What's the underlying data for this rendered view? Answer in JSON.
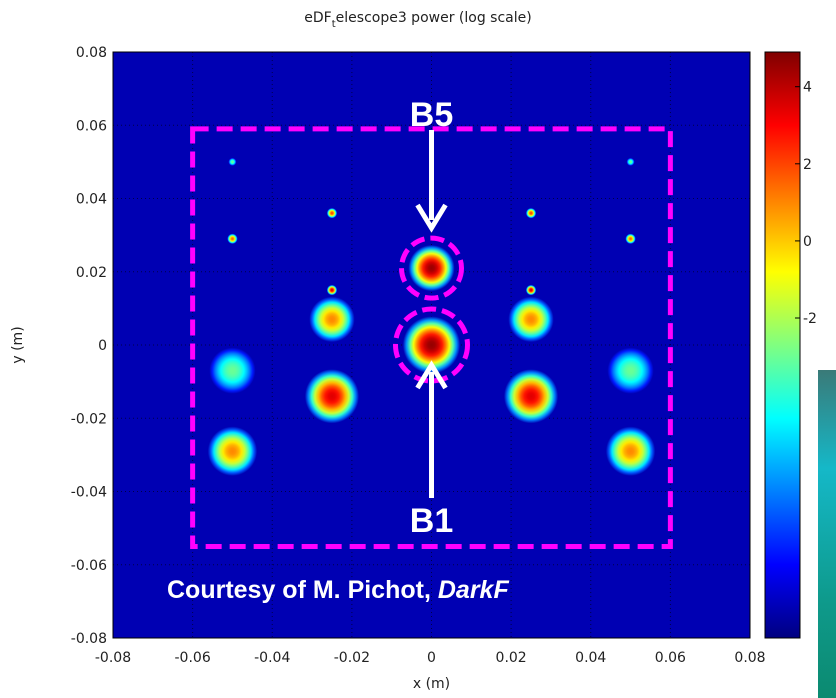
{
  "chart_data": {
    "type": "heatmap",
    "title": {
      "pre": "eDF",
      "sub": "t",
      "post": "elescope3 power (log scale)"
    },
    "x_label": "x (m)",
    "y_label": "y (m)",
    "xlim": [
      -0.08,
      0.08
    ],
    "ylim": [
      -0.08,
      0.08
    ],
    "xticks": [
      -0.08,
      -0.06,
      -0.04,
      -0.02,
      0,
      0.02,
      0.04,
      0.06,
      0.08
    ],
    "yticks": [
      -0.08,
      -0.06,
      -0.04,
      -0.02,
      0,
      0.02,
      0.04,
      0.06,
      0.08
    ],
    "grid": true,
    "colormap": "jet",
    "clim": [
      -10.3,
      4.9
    ],
    "cticks": [
      4,
      2,
      0,
      -2
    ],
    "x": [
      -0.05,
      0.05,
      -0.025,
      0.025,
      -0.05,
      0.05,
      0,
      -0.025,
      0.025,
      -0.025,
      0.025,
      0,
      -0.05,
      0.05,
      -0.025,
      0.025,
      -0.05,
      0.05
    ],
    "y": [
      0.05,
      0.05,
      0.036,
      0.036,
      0.029,
      0.029,
      0.021,
      0.015,
      0.015,
      0.007,
      0.007,
      0,
      -0.007,
      -0.007,
      -0.014,
      -0.014,
      -0.029,
      -0.029
    ],
    "values": [
      -3,
      -3,
      2,
      2,
      1.5,
      1.5,
      4.5,
      3.5,
      3.5,
      1,
      1,
      4.6,
      -3,
      -3,
      3.5,
      3.5,
      1,
      1
    ],
    "sizes": [
      0.001,
      0.001,
      0.0013,
      0.0013,
      0.0013,
      0.0013,
      0.0058,
      0.0013,
      0.0013,
      0.0057,
      0.0057,
      0.0072,
      0.0058,
      0.0058,
      0.0068,
      0.0068,
      0.0062,
      0.0062
    ],
    "annotations": {
      "b5": "B5",
      "b1": "B1",
      "credit": "Courtesy of M. Pichot, ",
      "credit_italic": "DarkF"
    }
  }
}
